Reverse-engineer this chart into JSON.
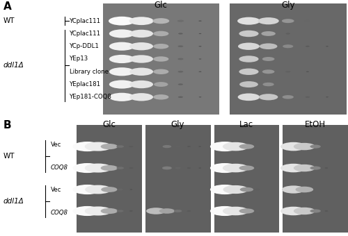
{
  "panel_A": {
    "title": "A",
    "row_labels": [
      "YCplac111",
      "YCplac111",
      "YCp-DDL1",
      "YEp13",
      "Library clone",
      "YEplac181",
      "YEp181-COQ8"
    ],
    "n_dilutions": 5,
    "bg_color_glc": "#787878",
    "bg_color_gly": "#686868",
    "conditions": [
      {
        "name": "Glc",
        "rows": [
          [
            1.0,
            0.92,
            0.6,
            0.18,
            0.04
          ],
          [
            0.95,
            0.88,
            0.55,
            0.1,
            0.02
          ],
          [
            0.95,
            0.88,
            0.55,
            0.14,
            0.03
          ],
          [
            0.95,
            0.88,
            0.55,
            0.15,
            0.02
          ],
          [
            0.95,
            0.88,
            0.55,
            0.14,
            0.03
          ],
          [
            0.95,
            0.88,
            0.5,
            0.12,
            0.0
          ],
          [
            0.95,
            0.88,
            0.55,
            0.12,
            0.02
          ]
        ]
      },
      {
        "name": "Gly",
        "rows": [
          [
            0.85,
            0.78,
            0.42,
            0.15,
            0.0
          ],
          [
            0.72,
            0.5,
            0.1,
            0.0,
            0.0
          ],
          [
            0.8,
            0.65,
            0.35,
            0.08,
            0.02
          ],
          [
            0.72,
            0.42,
            0.0,
            0.0,
            0.0
          ],
          [
            0.72,
            0.42,
            0.12,
            0.03,
            0.0
          ],
          [
            0.68,
            0.38,
            0.0,
            0.0,
            0.0
          ],
          [
            0.82,
            0.7,
            0.38,
            0.1,
            0.02
          ]
        ]
      }
    ]
  },
  "panel_B": {
    "title": "B",
    "row_labels": [
      "Vec",
      "COQ8",
      "Vec",
      "COQ8"
    ],
    "n_dilutions": 5,
    "bg_color": "#606060",
    "conditions": [
      {
        "name": "Glc",
        "rows": [
          [
            1.0,
            0.92,
            0.55,
            0.2,
            0.08
          ],
          [
            1.0,
            0.92,
            0.55,
            0.2,
            0.08
          ],
          [
            1.0,
            0.9,
            0.52,
            0.14,
            0.02
          ],
          [
            1.0,
            0.92,
            0.55,
            0.18,
            0.05
          ]
        ]
      },
      {
        "name": "Gly",
        "rows": [
          [
            0.0,
            0.25,
            0.12,
            0.05,
            0.02
          ],
          [
            0.0,
            0.28,
            0.14,
            0.06,
            0.02
          ],
          [
            0.0,
            0.0,
            0.0,
            0.0,
            0.0
          ],
          [
            0.65,
            0.5,
            0.22,
            0.07,
            0.0
          ]
        ]
      },
      {
        "name": "Lac",
        "rows": [
          [
            1.0,
            0.88,
            0.48,
            0.12,
            0.0
          ],
          [
            1.0,
            0.88,
            0.48,
            0.12,
            0.0
          ],
          [
            1.0,
            0.85,
            0.42,
            0.1,
            0.0
          ],
          [
            1.0,
            0.88,
            0.48,
            0.12,
            0.0
          ]
        ]
      },
      {
        "name": "EtOH",
        "rows": [
          [
            0.88,
            0.72,
            0.32,
            0.0,
            0.0
          ],
          [
            0.88,
            0.72,
            0.32,
            0.05,
            0.0
          ],
          [
            0.78,
            0.58,
            0.0,
            0.0,
            0.0
          ],
          [
            0.88,
            0.72,
            0.32,
            0.05,
            0.0
          ]
        ]
      }
    ]
  },
  "figure_bg": "#ffffff"
}
